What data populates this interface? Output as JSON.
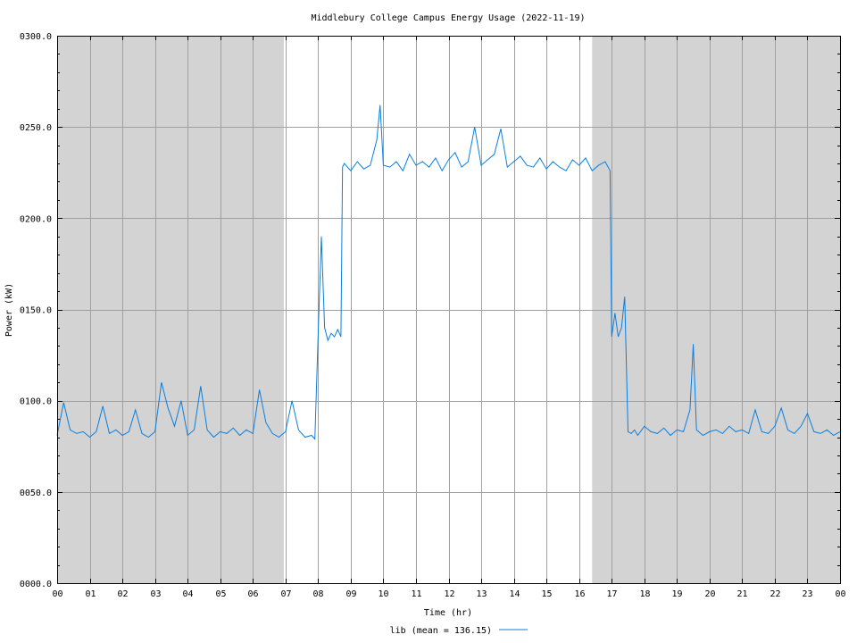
{
  "chart_data": {
    "type": "line",
    "title": "Middlebury College Campus Energy Usage (2022-11-19)",
    "xlabel": "Time (hr)",
    "ylabel": "Power (kW)",
    "xlim": [
      0,
      24
    ],
    "ylim": [
      0,
      300
    ],
    "x_ticks": [
      "00",
      "01",
      "02",
      "03",
      "04",
      "05",
      "06",
      "07",
      "08",
      "09",
      "10",
      "11",
      "12",
      "13",
      "14",
      "15",
      "16",
      "17",
      "18",
      "19",
      "20",
      "21",
      "22",
      "23",
      "00"
    ],
    "y_ticks": [
      "0000.0",
      "0050.0",
      "0100.0",
      "0150.0",
      "0200.0",
      "0250.0",
      "0300.0"
    ],
    "y_tick_values": [
      0,
      50,
      100,
      150,
      200,
      250,
      300
    ],
    "grid": true,
    "shaded_periods_hr": [
      [
        0,
        6.95
      ],
      [
        16.4,
        24
      ]
    ],
    "shade_color": "#d3d3d3",
    "legend": "bottom-center",
    "series": [
      {
        "name": "lib (mean = 136.15)",
        "color": "#0a7fe0",
        "x": [
          0,
          0.2,
          0.4,
          0.6,
          0.8,
          1,
          1.2,
          1.4,
          1.6,
          1.8,
          2,
          2.2,
          2.4,
          2.6,
          2.8,
          3,
          3.2,
          3.4,
          3.6,
          3.8,
          4,
          4.2,
          4.4,
          4.6,
          4.8,
          5,
          5.2,
          5.4,
          5.6,
          5.8,
          6,
          6.2,
          6.4,
          6.6,
          6.8,
          7,
          7.2,
          7.4,
          7.6,
          7.8,
          7.9,
          8,
          8.1,
          8.2,
          8.3,
          8.4,
          8.5,
          8.6,
          8.7,
          8.75,
          8.8,
          9,
          9.2,
          9.4,
          9.6,
          9.8,
          9.9,
          10,
          10.2,
          10.4,
          10.6,
          10.8,
          11,
          11.2,
          11.4,
          11.6,
          11.8,
          12,
          12.2,
          12.4,
          12.6,
          12.8,
          13,
          13.2,
          13.4,
          13.6,
          13.8,
          14,
          14.2,
          14.4,
          14.6,
          14.8,
          15,
          15.2,
          15.4,
          15.6,
          15.8,
          16,
          16.2,
          16.4,
          16.6,
          16.8,
          16.95,
          17,
          17.1,
          17.2,
          17.3,
          17.4,
          17.5,
          17.6,
          17.7,
          17.8,
          18,
          18.2,
          18.4,
          18.6,
          18.8,
          19,
          19.2,
          19.4,
          19.5,
          19.6,
          19.8,
          20,
          20.2,
          20.4,
          20.6,
          20.8,
          21,
          21.2,
          21.4,
          21.6,
          21.8,
          22,
          22.2,
          22.4,
          22.6,
          22.8,
          23,
          23.2,
          23.4,
          23.6,
          23.8,
          24
        ],
        "y": [
          81,
          99,
          84,
          82,
          83,
          80,
          83,
          97,
          82,
          84,
          81,
          83,
          95,
          82,
          80,
          83,
          110,
          96,
          86,
          100,
          81,
          84,
          108,
          84,
          80,
          83,
          82,
          85,
          81,
          84,
          82,
          106,
          88,
          82,
          80,
          83,
          100,
          84,
          80,
          81,
          79,
          135,
          190,
          140,
          133,
          137,
          135,
          139,
          135,
          228,
          230,
          226,
          231,
          227,
          229,
          243,
          262,
          229,
          228,
          231,
          226,
          235,
          229,
          231,
          228,
          233,
          226,
          232,
          236,
          228,
          231,
          250,
          229,
          232,
          235,
          249,
          228,
          231,
          234,
          229,
          228,
          233,
          227,
          231,
          228,
          226,
          232,
          229,
          233,
          226,
          229,
          231,
          226,
          135,
          148,
          135,
          140,
          157,
          83,
          82,
          84,
          81,
          86,
          83,
          82,
          85,
          81,
          84,
          83,
          95,
          131,
          84,
          81,
          83,
          84,
          82,
          86,
          83,
          84,
          82,
          95,
          83,
          82,
          86,
          96,
          84,
          82,
          86,
          93,
          83,
          82,
          84,
          81,
          83
        ]
      }
    ]
  }
}
